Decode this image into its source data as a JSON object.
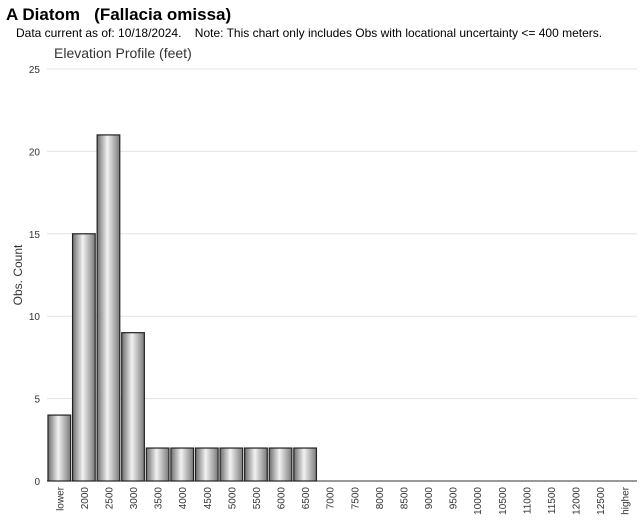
{
  "chart_data": {
    "type": "bar",
    "title": "A Diatom   (Fallacia omissa)",
    "subtitle": "Data current as of: 10/18/2024.    Note: This chart only includes Obs with locational uncertainty <= 400 meters.",
    "chart_title": "Elevation Profile (feet)",
    "y_label": "Obs. Count",
    "categories": [
      "lower",
      "2000",
      "2500",
      "3000",
      "3500",
      "4000",
      "4500",
      "5000",
      "5500",
      "6000",
      "6500",
      "7000",
      "7500",
      "8000",
      "8500",
      "9000",
      "9500",
      "10000",
      "10500",
      "11000",
      "11500",
      "12000",
      "12500",
      "higher"
    ],
    "values": [
      4,
      15,
      21,
      9,
      2,
      2,
      2,
      2,
      2,
      2,
      2,
      0,
      0,
      0,
      0,
      0,
      0,
      0,
      0,
      0,
      0,
      0,
      0,
      0
    ],
    "color": "#a0a0a0",
    "ylim": [
      0,
      25
    ],
    "yticks": [
      0,
      5,
      10,
      15,
      20,
      25
    ],
    "grid": true
  }
}
